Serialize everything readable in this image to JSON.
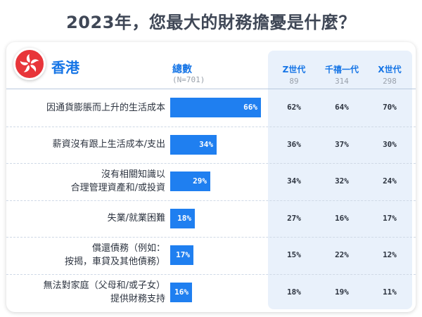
{
  "title": "2023年，您最大的財務擔憂是什麼？",
  "region": "香港",
  "total_header": "總數",
  "total_n": "(N=701)",
  "generations": [
    {
      "name": "Z世代",
      "n": "89"
    },
    {
      "name": "千禧一代",
      "n": "314"
    },
    {
      "name": "X世代",
      "n": "298"
    }
  ],
  "colors": {
    "accent": "#1675e6",
    "bar": "#1f7ff0",
    "panel": "#e9f1fb",
    "flag": "#e8353a"
  },
  "chart_data": {
    "type": "bar",
    "title": "2023年，您最大的財務擔憂是什麼？",
    "categories": [
      "因通貨膨脹而上升的生活成本",
      "薪資沒有跟上生活成本/支出",
      "沒有相關知識以合理管理資產和/或投資",
      "失業/就業困難",
      "償還債務（例如：按揭，車貸及其他債務）",
      "無法對家庭（父母和/或子女）提供財務支持"
    ],
    "series": [
      {
        "name": "總數",
        "values": [
          66,
          34,
          29,
          18,
          17,
          16
        ]
      },
      {
        "name": "Z世代",
        "values": [
          62,
          36,
          34,
          27,
          15,
          18
        ]
      },
      {
        "name": "千禧一代",
        "values": [
          64,
          37,
          32,
          16,
          22,
          19
        ]
      },
      {
        "name": "X世代",
        "values": [
          70,
          30,
          24,
          17,
          12,
          11
        ]
      }
    ],
    "ylim": [
      0,
      100
    ]
  },
  "rows": [
    {
      "lines": [
        "因通貨膨脹而上升的生活成本"
      ],
      "total": "66%",
      "z": "62%",
      "m": "64%",
      "x": "70%"
    },
    {
      "lines": [
        "薪資沒有跟上生活成本/支出"
      ],
      "total": "34%",
      "z": "36%",
      "m": "37%",
      "x": "30%"
    },
    {
      "lines": [
        "沒有相關知識以",
        "合理管理資產和/或投資"
      ],
      "total": "29%",
      "z": "34%",
      "m": "32%",
      "x": "24%"
    },
    {
      "lines": [
        "失業/就業困難"
      ],
      "total": "18%",
      "z": "27%",
      "m": "16%",
      "x": "17%"
    },
    {
      "lines": [
        "償還債務（例如：",
        "按揭，車貸及其他債務）"
      ],
      "total": "17%",
      "z": "15%",
      "m": "22%",
      "x": "12%"
    },
    {
      "lines": [
        "無法對家庭（父母和/或子女）",
        "提供財務支持"
      ],
      "total": "16%",
      "z": "18%",
      "m": "19%",
      "x": "11%"
    }
  ]
}
